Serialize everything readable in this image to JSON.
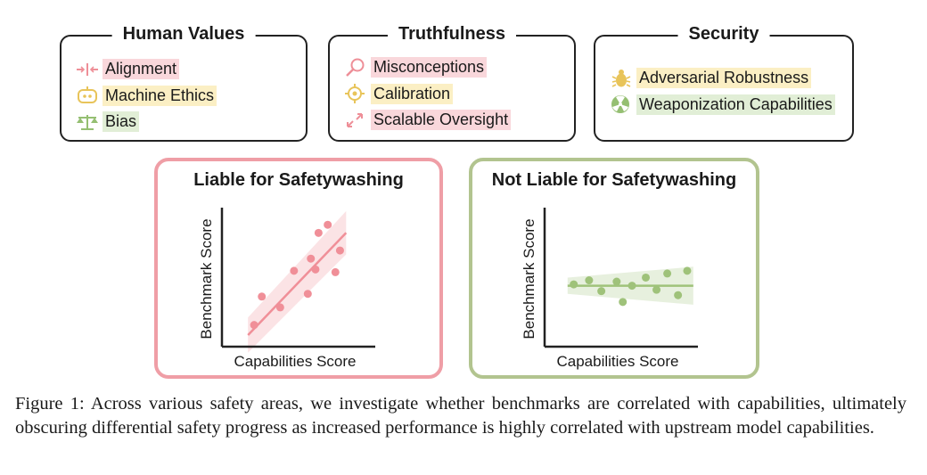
{
  "categories": [
    {
      "title": "Human Values",
      "items": [
        {
          "label": "Alignment",
          "icon": "alignment-icon",
          "highlight": "#f9d7db"
        },
        {
          "label": "Machine Ethics",
          "icon": "robot-icon",
          "highlight": "#fbefc4"
        },
        {
          "label": "Bias",
          "icon": "scales-icon",
          "highlight": "#e1eed6"
        }
      ]
    },
    {
      "title": "Truthfulness",
      "items": [
        {
          "label": "Misconceptions",
          "icon": "magnifier-icon",
          "highlight": "#f9d7db"
        },
        {
          "label": "Calibration",
          "icon": "crosshair-icon",
          "highlight": "#fbefc4"
        },
        {
          "label": "Scalable Oversight",
          "icon": "expand-arrows-icon",
          "highlight": "#f9d7db"
        }
      ]
    },
    {
      "title": "Security",
      "items": [
        {
          "label": "Adversarial Robustness",
          "icon": "bug-icon",
          "highlight": "#fbefc4"
        },
        {
          "label": "Weaponization Capabilities",
          "icon": "radiation-icon",
          "highlight": "#e1eed6"
        }
      ]
    }
  ],
  "panels": {
    "liable": {
      "title": "Liable for Safetywashing",
      "xlabel": "Capabilities Score",
      "ylabel": "Benchmark Score"
    },
    "not_liable": {
      "title": "Not Liable for Safetywashing",
      "xlabel": "Capabilities Score",
      "ylabel": "Benchmark Score"
    }
  },
  "chart_data": [
    {
      "type": "scatter",
      "title": "Liable for Safetywashing",
      "xlabel": "Capabilities Score",
      "ylabel": "Benchmark Score",
      "color": "#f08f98",
      "xlim": [
        0,
        10
      ],
      "ylim": [
        0,
        10
      ],
      "points": [
        [
          2.1,
          1.6
        ],
        [
          2.6,
          3.7
        ],
        [
          3.8,
          2.9
        ],
        [
          4.7,
          5.6
        ],
        [
          5.6,
          3.9
        ],
        [
          5.8,
          6.5
        ],
        [
          6.1,
          5.7
        ],
        [
          6.3,
          8.4
        ],
        [
          6.9,
          9.0
        ],
        [
          7.4,
          5.5
        ],
        [
          7.7,
          7.1
        ]
      ],
      "trend_line": {
        "slope": 1.18,
        "intercept": -1.15
      },
      "confidence_band": true
    },
    {
      "type": "scatter",
      "title": "Not Liable for Safetywashing",
      "xlabel": "Capabilities Score",
      "ylabel": "Benchmark Score",
      "color": "#9fc27a",
      "xlim": [
        0,
        10
      ],
      "ylim": [
        0,
        10
      ],
      "points": [
        [
          1.9,
          4.6
        ],
        [
          2.9,
          4.9
        ],
        [
          3.7,
          4.1
        ],
        [
          4.7,
          4.8
        ],
        [
          5.1,
          3.3
        ],
        [
          5.7,
          4.5
        ],
        [
          6.6,
          5.1
        ],
        [
          7.3,
          4.2
        ],
        [
          8.0,
          5.4
        ],
        [
          8.7,
          3.8
        ],
        [
          9.3,
          5.6
        ]
      ],
      "trend_line": {
        "slope": 0,
        "intercept": 4.5
      },
      "confidence_band": true
    }
  ],
  "caption": "Figure 1:  Across various safety areas, we investigate whether benchmarks are correlated with capabilities, ultimately obscuring differential safety progress as increased performance is highly correlated with upstream model capabilities."
}
